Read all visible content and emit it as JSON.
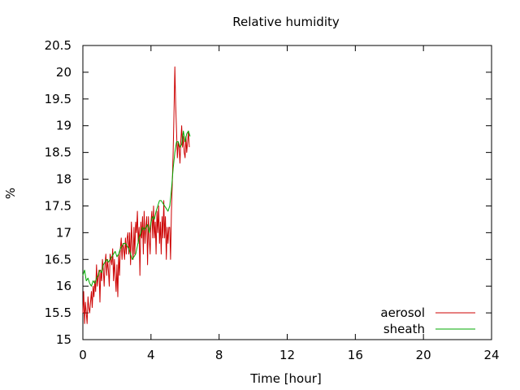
{
  "chart_data": {
    "type": "line",
    "title": "Relative humidity",
    "xlabel": "Time [hour]",
    "ylabel": "%",
    "xlim": [
      0,
      24
    ],
    "ylim": [
      15,
      20.5
    ],
    "xticks": [
      0,
      4,
      8,
      12,
      16,
      20,
      24
    ],
    "yticks": [
      15,
      15.5,
      16,
      16.5,
      17,
      17.5,
      18,
      18.5,
      19,
      19.5,
      20,
      20.5
    ],
    "grid": false,
    "legend_position": "bottom-right",
    "series": [
      {
        "name": "aerosol",
        "color": "#cc0000",
        "x": [
          0.0,
          0.05,
          0.1,
          0.15,
          0.2,
          0.25,
          0.3,
          0.35,
          0.4,
          0.45,
          0.5,
          0.55,
          0.6,
          0.65,
          0.7,
          0.75,
          0.8,
          0.85,
          0.9,
          0.95,
          1.0,
          1.05,
          1.1,
          1.15,
          1.2,
          1.25,
          1.3,
          1.35,
          1.4,
          1.45,
          1.5,
          1.55,
          1.6,
          1.65,
          1.7,
          1.75,
          1.8,
          1.85,
          1.9,
          1.95,
          2.0,
          2.05,
          2.1,
          2.15,
          2.2,
          2.25,
          2.3,
          2.35,
          2.4,
          2.45,
          2.5,
          2.55,
          2.6,
          2.65,
          2.7,
          2.75,
          2.8,
          2.85,
          2.9,
          2.95,
          3.0,
          3.05,
          3.1,
          3.15,
          3.2,
          3.25,
          3.3,
          3.35,
          3.4,
          3.45,
          3.5,
          3.55,
          3.6,
          3.65,
          3.7,
          3.75,
          3.8,
          3.85,
          3.9,
          3.95,
          4.0,
          4.05,
          4.1,
          4.15,
          4.2,
          4.25,
          4.3,
          4.35,
          4.4,
          4.45,
          4.5,
          4.55,
          4.6,
          4.65,
          4.7,
          4.75,
          4.8,
          4.85,
          4.9,
          4.95,
          5.0,
          5.05,
          5.1,
          5.15,
          5.2,
          5.25,
          5.3,
          5.35,
          5.4,
          5.45,
          5.5,
          5.55,
          5.6,
          5.65,
          5.7,
          5.75,
          5.8,
          5.85,
          5.9,
          5.95,
          6.0,
          6.05,
          6.1,
          6.15,
          6.2,
          6.25
        ],
        "y": [
          15.5,
          15.9,
          15.3,
          15.7,
          15.5,
          15.3,
          15.8,
          15.6,
          15.5,
          15.7,
          15.9,
          15.6,
          16.0,
          15.8,
          16.1,
          15.9,
          16.4,
          16.0,
          16.2,
          16.3,
          15.7,
          16.3,
          16.1,
          16.5,
          16.3,
          16.0,
          16.4,
          16.6,
          16.2,
          16.5,
          16.3,
          16.0,
          16.6,
          16.5,
          16.4,
          16.7,
          16.1,
          16.5,
          16.2,
          15.9,
          16.4,
          15.8,
          16.6,
          16.2,
          16.7,
          16.9,
          16.5,
          16.8,
          16.7,
          16.5,
          16.9,
          16.6,
          16.9,
          17.0,
          16.6,
          17.0,
          16.4,
          17.2,
          16.8,
          16.5,
          17.1,
          16.6,
          17.2,
          17.0,
          17.4,
          16.8,
          17.1,
          16.2,
          17.2,
          16.9,
          17.3,
          16.6,
          17.4,
          16.8,
          17.1,
          17.3,
          16.4,
          17.3,
          16.9,
          16.6,
          17.2,
          17.4,
          16.9,
          17.5,
          16.9,
          17.2,
          16.6,
          17.4,
          17.0,
          17.5,
          16.8,
          17.2,
          16.6,
          17.3,
          16.9,
          17.6,
          16.9,
          17.3,
          16.5,
          17.1,
          16.8,
          17.1,
          17.1,
          16.5,
          17.4,
          17.9,
          18.5,
          19.2,
          20.1,
          19.4,
          18.9,
          18.4,
          18.7,
          18.6,
          18.3,
          18.7,
          19.0,
          18.6,
          18.8,
          18.5,
          18.4,
          18.8,
          18.5,
          18.7,
          18.9,
          18.6
        ]
      },
      {
        "name": "sheath",
        "color": "#00aa00",
        "x": [
          0.0,
          0.1,
          0.2,
          0.3,
          0.4,
          0.5,
          0.6,
          0.7,
          0.8,
          0.9,
          1.0,
          1.1,
          1.2,
          1.3,
          1.4,
          1.5,
          1.6,
          1.7,
          1.8,
          1.9,
          2.0,
          2.1,
          2.2,
          2.3,
          2.4,
          2.5,
          2.6,
          2.7,
          2.8,
          2.9,
          3.0,
          3.1,
          3.2,
          3.3,
          3.4,
          3.5,
          3.6,
          3.7,
          3.8,
          3.9,
          4.0,
          4.1,
          4.2,
          4.3,
          4.4,
          4.5,
          4.6,
          4.7,
          4.8,
          4.9,
          5.0,
          5.1,
          5.2,
          5.3,
          5.4,
          5.5,
          5.6,
          5.7,
          5.8,
          5.9,
          6.0,
          6.1,
          6.2,
          6.3
        ],
        "y": [
          16.2,
          16.3,
          16.1,
          16.15,
          16.05,
          16.0,
          16.1,
          16.05,
          16.15,
          16.2,
          16.3,
          16.25,
          16.4,
          16.45,
          16.5,
          16.45,
          16.5,
          16.55,
          16.6,
          16.65,
          16.55,
          16.6,
          16.7,
          16.75,
          16.8,
          16.8,
          16.75,
          16.7,
          16.6,
          16.5,
          16.55,
          16.6,
          16.75,
          16.9,
          17.0,
          17.1,
          17.05,
          17.1,
          17.15,
          17.0,
          17.2,
          17.3,
          17.25,
          17.4,
          17.5,
          17.6,
          17.6,
          17.55,
          17.5,
          17.45,
          17.4,
          17.5,
          17.8,
          18.2,
          18.5,
          18.7,
          18.7,
          18.6,
          18.65,
          18.9,
          18.7,
          18.85,
          18.9,
          18.8
        ]
      }
    ]
  }
}
